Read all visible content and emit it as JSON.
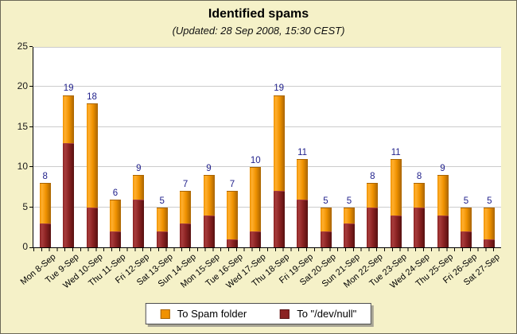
{
  "window": {
    "title": "Identified spams",
    "subtitle": "(Updated: 28 Sep 2008, 15:30 CEST)"
  },
  "chart_data": {
    "type": "bar",
    "stacked": true,
    "title": "Identified spams",
    "subtitle": "(Updated: 28 Sep 2008, 15:30 CEST)",
    "categories": [
      "Mon 8-Sep",
      "Tue 9-Sep",
      "Wed 10-Sep",
      "Thu 11-Sep",
      "Fri 12-Sep",
      "Sat 13-Sep",
      "Sun 14-Sep",
      "Mon 15-Sep",
      "Tue 16-Sep",
      "Wed 17-Sep",
      "Thu 18-Sep",
      "Fri 19-Sep",
      "Sat 20-Sep",
      "Sun 21-Sep",
      "Mon 22-Sep",
      "Tue 23-Sep",
      "Wed 24-Sep",
      "Thu 25-Sep",
      "Fri 26-Sep",
      "Sat 27-Sep"
    ],
    "series": [
      {
        "name": "To Spam folder",
        "color": "#f09200",
        "color_light": "#ffaf2e",
        "color_dark": "#a86400",
        "values": [
          5,
          6,
          13,
          4,
          3,
          3,
          4,
          5,
          6,
          8,
          12,
          5,
          3,
          2,
          3,
          7,
          3,
          5,
          3,
          4
        ]
      },
      {
        "name": "To \"/dev/null\"",
        "color": "#8b2222",
        "color_light": "#a73c3c",
        "color_dark": "#571010",
        "values": [
          3,
          13,
          5,
          2,
          6,
          2,
          3,
          4,
          1,
          2,
          7,
          6,
          2,
          3,
          5,
          4,
          5,
          4,
          2,
          1
        ]
      }
    ],
    "totals": [
      8,
      19,
      18,
      6,
      9,
      5,
      7,
      9,
      7,
      10,
      19,
      11,
      5,
      5,
      8,
      11,
      8,
      9,
      5,
      5
    ],
    "xlabel": "",
    "ylabel": "",
    "ylim": [
      0,
      25
    ],
    "yticks": [
      0,
      5,
      10,
      15,
      20,
      25
    ],
    "grid": true,
    "legend_position": "bottom"
  },
  "colors": {
    "background": "#f5f1c8",
    "plot_background": "#ffffff",
    "gridline": "#cccccc",
    "axis": "#000000",
    "value_label": "#22228c",
    "title_text": "#000000"
  }
}
